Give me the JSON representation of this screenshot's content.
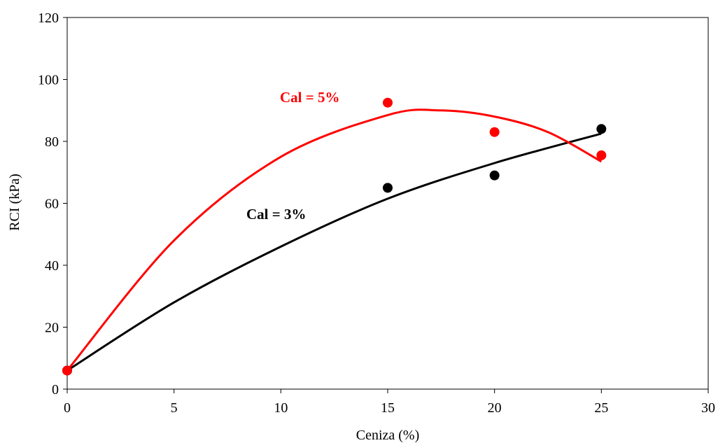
{
  "chart_data": {
    "type": "scatter",
    "xlabel": "Ceniza (%)",
    "ylabel": "RCI (kPa)",
    "xlim": [
      0,
      30
    ],
    "ylim": [
      0,
      120
    ],
    "xticks": [
      0,
      5,
      10,
      15,
      20,
      25,
      30
    ],
    "yticks": [
      0,
      20,
      40,
      60,
      80,
      100,
      120
    ],
    "grid": false,
    "legend": "none",
    "series": [
      {
        "name": "Cal = 3%",
        "color": "#000000",
        "points": [
          {
            "x": 0,
            "y": 6
          },
          {
            "x": 15,
            "y": 65
          },
          {
            "x": 20,
            "y": 69
          },
          {
            "x": 25,
            "y": 84
          }
        ],
        "trendline": {
          "type": "polynomial",
          "x_range": [
            0,
            25
          ],
          "points": [
            {
              "x": 0,
              "y": 6
            },
            {
              "x": 5,
              "y": 28
            },
            {
              "x": 10,
              "y": 46
            },
            {
              "x": 15,
              "y": 61.5
            },
            {
              "x": 20,
              "y": 73
            },
            {
              "x": 25,
              "y": 82.5
            }
          ]
        }
      },
      {
        "name": "Cal = 5%",
        "color": "#ff0000",
        "points": [
          {
            "x": 0,
            "y": 6
          },
          {
            "x": 15,
            "y": 92.5
          },
          {
            "x": 20,
            "y": 83
          },
          {
            "x": 25,
            "y": 75.5
          }
        ],
        "trendline": {
          "type": "polynomial",
          "x_range": [
            0,
            25
          ],
          "points": [
            {
              "x": 0,
              "y": 6
            },
            {
              "x": 5,
              "y": 48
            },
            {
              "x": 10,
              "y": 75
            },
            {
              "x": 15,
              "y": 88.5
            },
            {
              "x": 17.5,
              "y": 90
            },
            {
              "x": 20,
              "y": 88
            },
            {
              "x": 22.5,
              "y": 83
            },
            {
              "x": 25,
              "y": 73.5
            }
          ]
        }
      }
    ],
    "annotations": [
      {
        "text": "Cal = 5%",
        "color": "#ff0000",
        "series": 1
      },
      {
        "text": "Cal = 3%",
        "color": "#000000",
        "series": 0
      }
    ]
  }
}
